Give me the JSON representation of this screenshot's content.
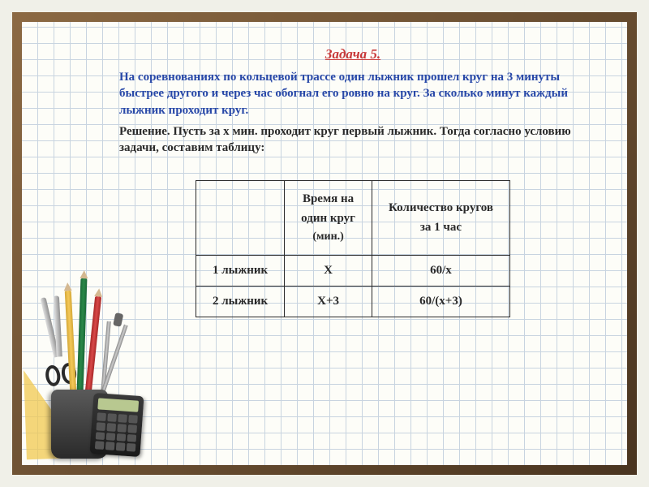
{
  "title": "Задача 5.",
  "problem": "На соревнованиях по кольцевой трассе один лыжник прошел круг на 3 минуты быстрее другого и через час обогнал его ровно на круг. За сколько минут каждый лыжник проходит круг.",
  "solution_intro": "Решение. Пусть за х мин. проходит круг первый лыжник.  Тогда согласно условию задачи, составим таблицу:",
  "table": {
    "headers": {
      "row_label": "",
      "col1_line1": "Время на",
      "col1_line2": "один круг",
      "col1_unit": "(мин.)",
      "col2_line1": "Количество кругов",
      "col2_line2": "за 1 час"
    },
    "rows": [
      {
        "label": "1 лыжник",
        "time": "Х",
        "laps": "60/х"
      },
      {
        "label": "2 лыжник",
        "time": "Х+3",
        "laps": "60/(х+3)"
      }
    ]
  },
  "colors": {
    "title": "#c83838",
    "problem": "#2848a8",
    "body": "#2a2a2a",
    "frame": "#6b4a2f",
    "grid": "#c8d4e0",
    "paper": "#fdfdf8"
  },
  "typography": {
    "title_fontsize": 17,
    "body_fontsize": 15,
    "font_family": "Times New Roman"
  }
}
